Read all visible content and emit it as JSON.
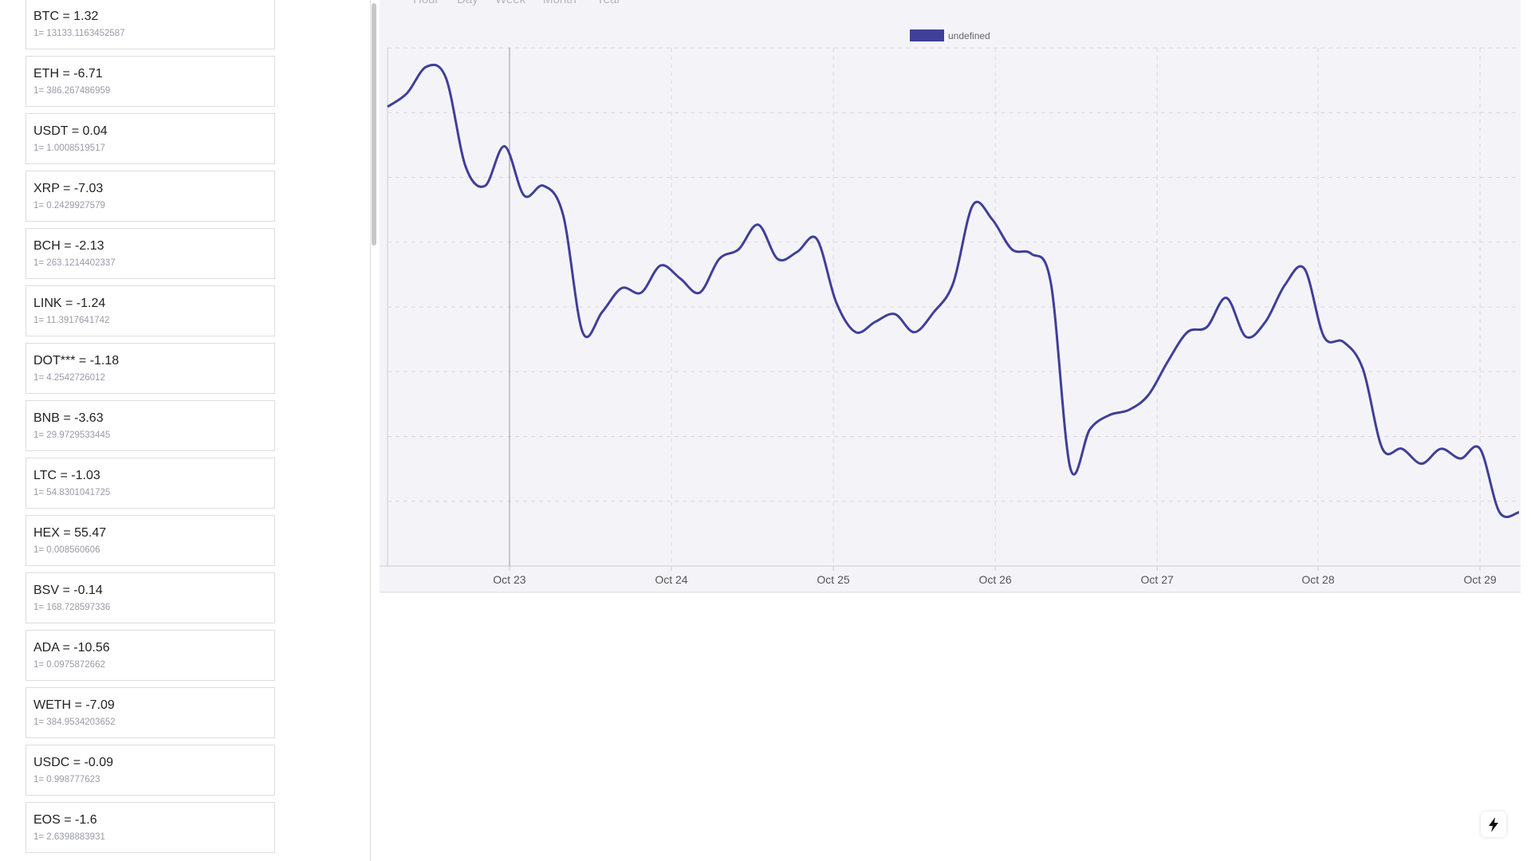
{
  "tabs": [
    "Hour",
    "Day",
    "Week",
    "Month",
    "Year"
  ],
  "coins": [
    {
      "title": "BTC = 1.32",
      "rate": "1= 13133.1163452587"
    },
    {
      "title": "ETH = -6.71",
      "rate": "1= 386.267486959"
    },
    {
      "title": "USDT = 0.04",
      "rate": "1= 1.0008519517"
    },
    {
      "title": "XRP = -7.03",
      "rate": "1= 0.2429927579"
    },
    {
      "title": "BCH = -2.13",
      "rate": "1= 263.1214402337"
    },
    {
      "title": "LINK = -1.24",
      "rate": "1= 11.3917641742"
    },
    {
      "title": "DOT*** = -1.18",
      "rate": "1= 4.2542726012"
    },
    {
      "title": "BNB = -3.63",
      "rate": "1= 29.9729533445"
    },
    {
      "title": "LTC = -1.03",
      "rate": "1= 54.8301041725"
    },
    {
      "title": "HEX = 55.47",
      "rate": "1= 0.008560606"
    },
    {
      "title": "BSV = -0.14",
      "rate": "1= 168.728597336"
    },
    {
      "title": "ADA = -10.56",
      "rate": "1= 0.0975872662"
    },
    {
      "title": "WETH = -7.09",
      "rate": "1= 384.9534203652"
    },
    {
      "title": "USDC = -0.09",
      "rate": "1= 0.998777623"
    },
    {
      "title": "EOS = -1.6",
      "rate": "1= 2.6398883931"
    }
  ],
  "chart_data": {
    "type": "line",
    "series": [
      {
        "name": "undefined",
        "color": "#3f3f9a",
        "values": [
          7.09,
          7.3,
          7.71,
          7.53,
          6.17,
          5.87,
          6.48,
          5.72,
          5.87,
          5.42,
          3.61,
          3.92,
          4.29,
          4.22,
          4.64,
          4.44,
          4.22,
          4.74,
          4.89,
          5.27,
          4.74,
          4.85,
          5.05,
          4.07,
          3.61,
          3.77,
          3.89,
          3.61,
          3.92,
          4.37,
          5.57,
          5.35,
          4.89,
          4.82,
          4.37,
          1.51,
          2.11,
          2.33,
          2.41,
          2.64,
          3.16,
          3.61,
          3.69,
          4.14,
          3.54,
          3.77,
          4.34,
          4.59,
          3.54,
          3.46,
          3.04,
          1.81,
          1.81,
          1.58,
          1.81,
          1.66,
          1.81,
          0.83,
          0.83
        ]
      }
    ],
    "xlim": [
      0,
      58
    ],
    "xticks": [
      {
        "value": 6.25,
        "label": "Oct 23"
      },
      {
        "value": 14.55,
        "label": "Oct 24"
      },
      {
        "value": 22.85,
        "label": "Oct 25"
      },
      {
        "value": 31.15,
        "label": "Oct 26"
      },
      {
        "value": 39.45,
        "label": "Oct 27"
      },
      {
        "value": 47.7,
        "label": "Oct 28"
      },
      {
        "value": 56,
        "label": "Oct 29"
      }
    ],
    "ylim": [
      0,
      8
    ],
    "yticks": [
      0,
      1,
      2,
      3,
      4,
      5,
      6,
      7,
      8
    ],
    "grid": true
  }
}
